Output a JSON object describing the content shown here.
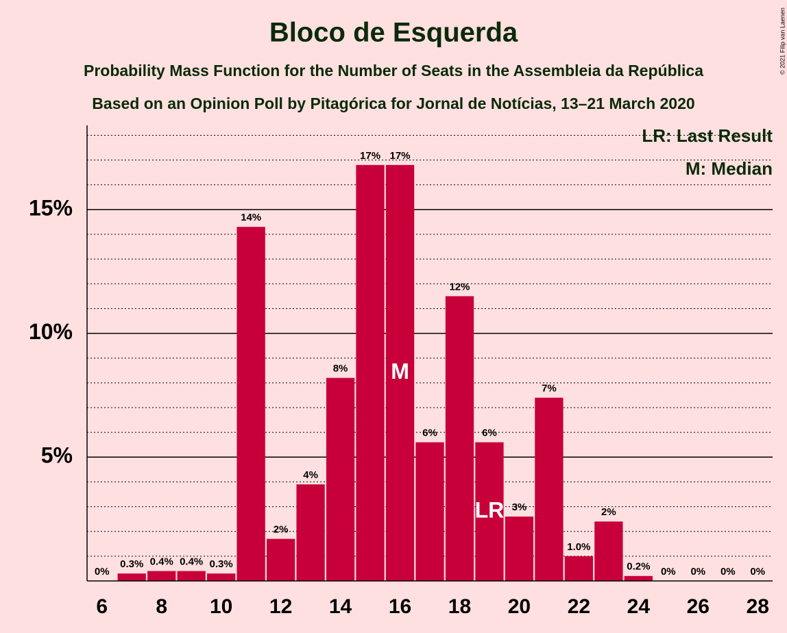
{
  "chart_data": {
    "type": "bar",
    "title": "Bloco de Esquerda",
    "subtitle": "Probability Mass Function for the Number of Seats in the Assembleia da República",
    "subtitle2": "Based on an Opinion Poll by Pitagórica for Jornal de Notícias, 13–21 March 2020",
    "copyright": "© 2021 Filip van Laenen",
    "x": [
      6,
      7,
      8,
      9,
      10,
      11,
      12,
      13,
      14,
      15,
      16,
      17,
      18,
      19,
      20,
      21,
      22,
      23,
      24,
      25,
      26,
      27,
      28
    ],
    "values": [
      0,
      0.3,
      0.4,
      0.4,
      0.3,
      14.3,
      1.7,
      3.9,
      8.2,
      16.8,
      16.8,
      5.6,
      11.5,
      5.6,
      2.6,
      7.4,
      1.0,
      2.4,
      0.2,
      0,
      0,
      0,
      0
    ],
    "value_labels": [
      "0%",
      "0.3%",
      "0.4%",
      "0.4%",
      "0.3%",
      "14%",
      "2%",
      "4%",
      "8%",
      "17%",
      "17%",
      "6%",
      "12%",
      "6%",
      "3%",
      "7%",
      "1.0%",
      "2%",
      "0.2%",
      "0%",
      "0%",
      "0%",
      "0%"
    ],
    "color": "#c8003a",
    "xlim": [
      5.5,
      28.5
    ],
    "xticks": [
      6,
      8,
      10,
      12,
      14,
      16,
      18,
      20,
      22,
      24,
      26,
      28
    ],
    "ylim": [
      0,
      18.4
    ],
    "yticks": [
      {
        "value": 5,
        "label": "5%"
      },
      {
        "value": 10,
        "label": "10%"
      },
      {
        "value": 15,
        "label": "15%"
      }
    ],
    "minor_yticks": [
      1,
      2,
      3,
      4,
      6,
      7,
      8,
      9,
      11,
      12,
      13,
      14,
      16,
      17,
      18
    ],
    "annotations": [
      {
        "x": 16,
        "label": "M"
      },
      {
        "x": 19,
        "label": "LR"
      }
    ],
    "legend": [
      "LR: Last Result",
      "M: Median"
    ],
    "legend_position": "upper right",
    "grid": true
  }
}
